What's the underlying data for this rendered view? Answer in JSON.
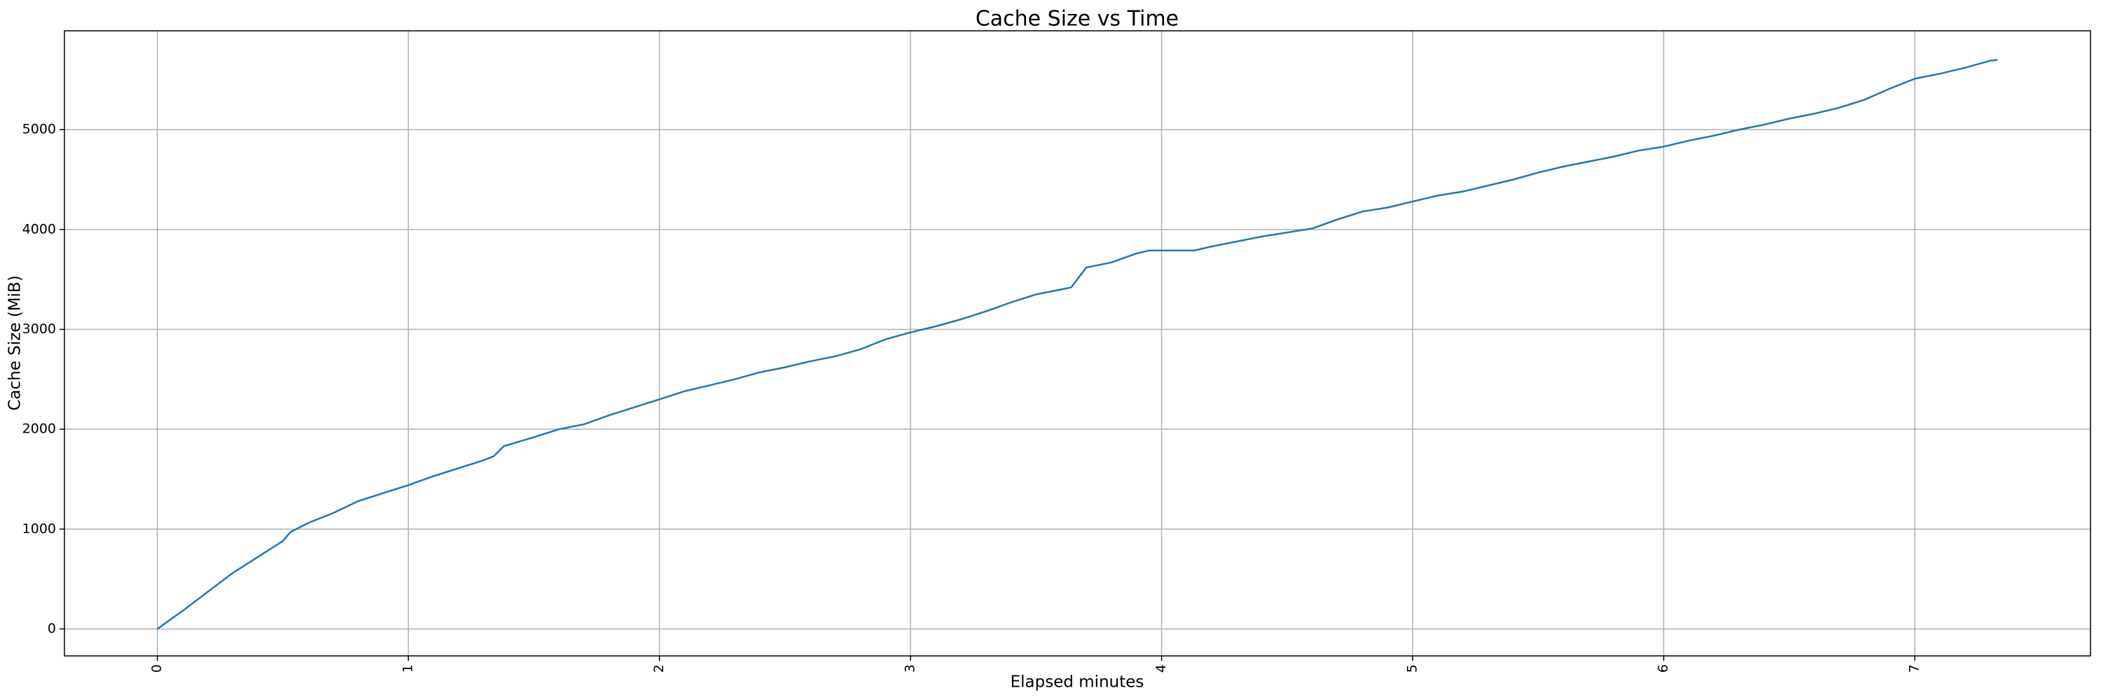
{
  "chart_data": {
    "type": "line",
    "title": "Cache Size vs Time",
    "xlabel": "Elapsed minutes",
    "ylabel": "Cache Size (MiB)",
    "color": "#1f77b4",
    "grid": true,
    "x": [
      0,
      0.1,
      0.2,
      0.3,
      0.4,
      0.5,
      0.53,
      0.6,
      0.7,
      0.8,
      0.9,
      1.0,
      1.1,
      1.2,
      1.3,
      1.34,
      1.38,
      1.5,
      1.6,
      1.7,
      1.8,
      1.9,
      2.0,
      2.1,
      2.2,
      2.3,
      2.4,
      2.5,
      2.6,
      2.7,
      2.8,
      2.9,
      3.0,
      3.1,
      3.2,
      3.3,
      3.4,
      3.5,
      3.6,
      3.64,
      3.7,
      3.8,
      3.9,
      3.95,
      4.0,
      4.13,
      4.2,
      4.3,
      4.4,
      4.5,
      4.6,
      4.7,
      4.8,
      4.9,
      5.0,
      5.1,
      5.2,
      5.3,
      5.4,
      5.5,
      5.6,
      5.7,
      5.8,
      5.9,
      6.0,
      6.1,
      6.2,
      6.3,
      6.4,
      6.5,
      6.6,
      6.7,
      6.8,
      6.9,
      7.0,
      7.1,
      7.2,
      7.3,
      7.33
    ],
    "values": [
      0,
      180,
      370,
      560,
      720,
      880,
      970,
      1060,
      1160,
      1280,
      1360,
      1440,
      1530,
      1610,
      1690,
      1730,
      1830,
      1920,
      2000,
      2050,
      2140,
      2220,
      2300,
      2380,
      2440,
      2500,
      2570,
      2620,
      2680,
      2730,
      2800,
      2900,
      2970,
      3030,
      3100,
      3180,
      3270,
      3350,
      3400,
      3420,
      3620,
      3670,
      3760,
      3790,
      3790,
      3790,
      3830,
      3880,
      3930,
      3970,
      4010,
      4100,
      4180,
      4220,
      4280,
      4340,
      4380,
      4440,
      4500,
      4570,
      4630,
      4680,
      4730,
      4790,
      4830,
      4890,
      4940,
      5000,
      5050,
      5110,
      5160,
      5220,
      5300,
      5410,
      5510,
      5560,
      5620,
      5690,
      5700
    ],
    "xlim": [
      -0.37,
      7.7
    ],
    "ylim": [
      -270,
      5990
    ],
    "xticks": [
      0,
      1,
      2,
      3,
      4,
      5,
      6,
      7
    ],
    "yticks": [
      0,
      1000,
      2000,
      3000,
      4000,
      5000
    ]
  }
}
